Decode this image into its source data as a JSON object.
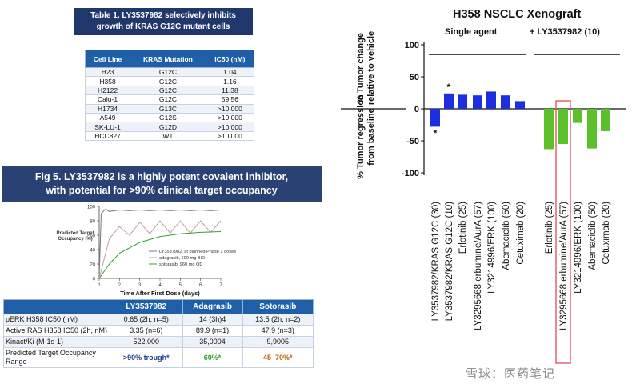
{
  "table1": {
    "title_line1": "Table 1. LY3537982 selectively inhibits",
    "title_line2": "growth of KRAS G12C mutant cells",
    "headers": [
      "Cell Line",
      "KRAS Mutation",
      "IC50 (nM)"
    ],
    "rows": [
      [
        "H23",
        "G12C",
        "1.04"
      ],
      [
        "H358",
        "G12C",
        "1.16"
      ],
      [
        "H2122",
        "G12C",
        "11.38"
      ],
      [
        "Calu-1",
        "G12C",
        "59.56"
      ],
      [
        "H1734",
        "G13C",
        ">10,000"
      ],
      [
        "A549",
        "G12S",
        ">10,000"
      ],
      [
        "SK-LU-1",
        "G12D",
        ">10,000"
      ],
      [
        "HCC827",
        "WT",
        ">10,000"
      ]
    ]
  },
  "fig5": {
    "title_line1": "Fig 5. LY3537982 is a highly potent covalent inhibitor,",
    "title_line2": "with potential for >90% clinical target occupancy"
  },
  "table2": {
    "headers": [
      "",
      "LY3537982",
      "Adagrasib",
      "Sotorasib"
    ],
    "rows": [
      {
        "label": "pERK H358 IC50 (nM)",
        "values": [
          "0.65 (2h, n=5)",
          "14 (3h)4",
          "13.5 (2h, n=2)"
        ]
      },
      {
        "label": "Active RAS H358 IC50 (2h, nM)",
        "values": [
          "3.35 (n=6)",
          "89.9 (n=1)",
          "47.9 (n=3)"
        ]
      },
      {
        "label": "Kinact/Ki (M-1s-1)",
        "values": [
          "522,000",
          "35,0004",
          "9,9005"
        ]
      },
      {
        "label": "Predicted Target Occupancy Range",
        "values": [
          ">90% trough*",
          "60%*",
          "45–70%*"
        ]
      }
    ],
    "value_colors": [
      "#1f3f8f",
      "#2ea32e",
      "#b3630f"
    ]
  },
  "chart_data": [
    {
      "type": "line",
      "title": "",
      "xlabel": "Time After First Dose (days)",
      "ylabel": "Predicted Target Occupancy (%)",
      "xlim": [
        1,
        7
      ],
      "ylim": [
        0,
        100
      ],
      "x_ticks": [
        1,
        2,
        3,
        4,
        5,
        6,
        7
      ],
      "y_ticks": [
        0,
        20,
        40,
        60,
        80,
        100
      ],
      "series": [
        {
          "name": "LY3537982, at planned Phase 1 doses",
          "color": "#7a7a7a",
          "x": [
            1,
            1.1,
            1.3,
            1.5,
            2,
            2.5,
            3,
            3.5,
            4,
            4.5,
            5,
            5.5,
            6,
            6.5,
            7
          ],
          "y": [
            0,
            90,
            96,
            93,
            95,
            94,
            95,
            94,
            95,
            94,
            95,
            94,
            95,
            94,
            95
          ]
        },
        {
          "name": "adagrasib, 600 mg BID",
          "color": "#c89a9a",
          "x": [
            1,
            1.5,
            2,
            2.5,
            3,
            3.5,
            4,
            4.5,
            5,
            5.5,
            6,
            6.5,
            7
          ],
          "y": [
            0,
            55,
            72,
            60,
            78,
            62,
            80,
            63,
            80,
            63,
            80,
            64,
            80
          ]
        },
        {
          "name": "sotorasib, 960 mg QD",
          "color": "#2ea32e",
          "x": [
            1,
            1.5,
            2,
            3,
            4,
            5,
            6,
            7
          ],
          "y": [
            0,
            20,
            35,
            50,
            58,
            62,
            64,
            65
          ]
        }
      ],
      "legend": "bottom-right"
    },
    {
      "type": "bar",
      "title": "H358 NSCLC Xenograft",
      "ylabel_upper": "% Tumor change relative to vehicle",
      "ylabel_lower": "% Tumor regression from baseline",
      "ylim": [
        -100,
        100
      ],
      "y_ticks": [
        100,
        50,
        0,
        -50,
        -100
      ],
      "groups": [
        {
          "label": "Single agent",
          "color": "#1c2ee0"
        },
        {
          "label": "+ LY3537982 (10)",
          "color": "#5cc02a"
        }
      ],
      "categories": [
        "LY3537982/KRAS G12C (30)",
        "LY3537982/KRAS G12C (10)",
        "Erlotinib (25)",
        "LY3295668 erbumine/AurA (57)",
        "LY3214996/ERK (100)",
        "Abemaciclib (50)",
        "Cetuximab (20)",
        "Erlotinib (25)",
        "LY3295668 erbumine/AurA (57)",
        "LY3214996/ERK (100)",
        "Abemaciclib (50)",
        "Cetuximab (20)"
      ],
      "values": [
        -28,
        24,
        22,
        21,
        27,
        21,
        12,
        -63,
        -55,
        -22,
        -62,
        -35
      ],
      "annotations": [
        {
          "category_index": 0,
          "text": "*"
        },
        {
          "category_index": 1,
          "text": "*"
        }
      ],
      "highlight_index": 8
    }
  ],
  "watermark": "雪球：医药笔记"
}
